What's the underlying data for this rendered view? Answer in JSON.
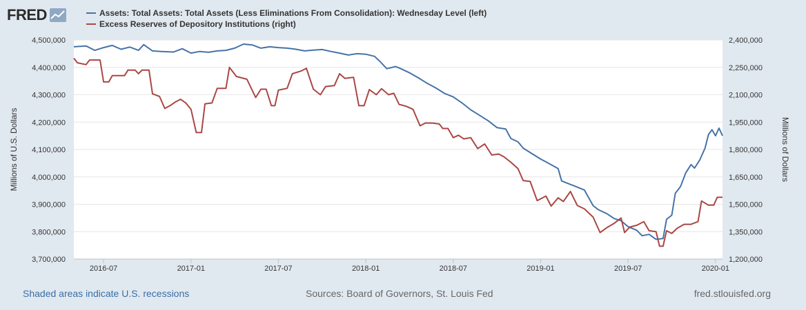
{
  "header": {
    "logo_text": "FRED",
    "logo_icon": "chart-line-icon"
  },
  "legend": [
    {
      "label": "Assets: Total Assets: Total Assets (Less Eliminations From Consolidation): Wednesday Level (left)",
      "color": "#4572a7"
    },
    {
      "label": "Excess Reserves of Depository Institutions (right)",
      "color": "#aa4643"
    }
  ],
  "footer": {
    "recessions": "Shaded areas indicate U.S. recessions",
    "sources": "Sources: Board of Governors, St. Louis Fed",
    "site": "fred.stlouisfed.org"
  },
  "chart_data": {
    "type": "line",
    "title": "",
    "xlabel": "",
    "x_ticks": [
      "2016-07",
      "2017-01",
      "2017-07",
      "2018-01",
      "2018-07",
      "2019-01",
      "2019-07",
      "2020-01"
    ],
    "x_tick_values": [
      2016.5,
      2017.0,
      2017.5,
      2018.0,
      2018.5,
      2019.0,
      2019.5,
      2020.0
    ],
    "xlim": [
      2016.33,
      2020.04
    ],
    "left_axis": {
      "label": "Millions of U.S. Dollars",
      "ylim": [
        3700000,
        4500000
      ],
      "ticks": [
        3700000,
        3800000,
        3900000,
        4000000,
        4100000,
        4200000,
        4300000,
        4400000,
        4500000
      ],
      "tick_labels": [
        "3,700,000",
        "3,800,000",
        "3,900,000",
        "4,000,000",
        "4,100,000",
        "4,200,000",
        "4,300,000",
        "4,400,000",
        "4,500,000"
      ]
    },
    "right_axis": {
      "label": "Millions of Dollars",
      "ylim": [
        1200000,
        2400000
      ],
      "ticks": [
        1200000,
        1350000,
        1500000,
        1650000,
        1800000,
        1950000,
        2100000,
        2250000,
        2400000
      ],
      "tick_labels": [
        "1,200,000",
        "1,350,000",
        "1,500,000",
        "1,650,000",
        "1,800,000",
        "1,950,000",
        "2,100,000",
        "2,250,000",
        "2,400,000"
      ]
    },
    "series": [
      {
        "name": "Assets: Total Assets: Total Assets (Less Eliminations From Consolidation): Wednesday Level (left)",
        "axis": "left",
        "color": "#4572a7",
        "points": [
          [
            2016.33,
            4475000
          ],
          [
            2016.4,
            4478000
          ],
          [
            2016.45,
            4462000
          ],
          [
            2016.5,
            4472000
          ],
          [
            2016.55,
            4480000
          ],
          [
            2016.6,
            4466000
          ],
          [
            2016.65,
            4474000
          ],
          [
            2016.7,
            4462000
          ],
          [
            2016.73,
            4483000
          ],
          [
            2016.78,
            4460000
          ],
          [
            2016.83,
            4458000
          ],
          [
            2016.9,
            4456000
          ],
          [
            2016.95,
            4468000
          ],
          [
            2017.0,
            4452000
          ],
          [
            2017.05,
            4458000
          ],
          [
            2017.1,
            4455000
          ],
          [
            2017.15,
            4460000
          ],
          [
            2017.2,
            4462000
          ],
          [
            2017.25,
            4470000
          ],
          [
            2017.3,
            4485000
          ],
          [
            2017.35,
            4482000
          ],
          [
            2017.4,
            4470000
          ],
          [
            2017.45,
            4475000
          ],
          [
            2017.5,
            4472000
          ],
          [
            2017.55,
            4470000
          ],
          [
            2017.6,
            4466000
          ],
          [
            2017.65,
            4460000
          ],
          [
            2017.7,
            4463000
          ],
          [
            2017.75,
            4465000
          ],
          [
            2017.8,
            4458000
          ],
          [
            2017.85,
            4452000
          ],
          [
            2017.9,
            4445000
          ],
          [
            2017.95,
            4450000
          ],
          [
            2018.0,
            4448000
          ],
          [
            2018.05,
            4440000
          ],
          [
            2018.08,
            4422000
          ],
          [
            2018.12,
            4395000
          ],
          [
            2018.17,
            4403000
          ],
          [
            2018.2,
            4395000
          ],
          [
            2018.25,
            4380000
          ],
          [
            2018.3,
            4362000
          ],
          [
            2018.35,
            4342000
          ],
          [
            2018.4,
            4325000
          ],
          [
            2018.45,
            4305000
          ],
          [
            2018.5,
            4292000
          ],
          [
            2018.55,
            4270000
          ],
          [
            2018.6,
            4245000
          ],
          [
            2018.65,
            4225000
          ],
          [
            2018.7,
            4205000
          ],
          [
            2018.75,
            4180000
          ],
          [
            2018.8,
            4175000
          ],
          [
            2018.83,
            4140000
          ],
          [
            2018.87,
            4128000
          ],
          [
            2018.9,
            4105000
          ],
          [
            2018.95,
            4085000
          ],
          [
            2019.0,
            4065000
          ],
          [
            2019.05,
            4048000
          ],
          [
            2019.1,
            4030000
          ],
          [
            2019.12,
            3985000
          ],
          [
            2019.16,
            3975000
          ],
          [
            2019.2,
            3965000
          ],
          [
            2019.25,
            3952000
          ],
          [
            2019.3,
            3895000
          ],
          [
            2019.33,
            3880000
          ],
          [
            2019.38,
            3865000
          ],
          [
            2019.42,
            3848000
          ],
          [
            2019.46,
            3840000
          ],
          [
            2019.5,
            3818000
          ],
          [
            2019.55,
            3805000
          ],
          [
            2019.58,
            3785000
          ],
          [
            2019.62,
            3790000
          ],
          [
            2019.66,
            3772000
          ],
          [
            2019.7,
            3775000
          ],
          [
            2019.72,
            3845000
          ],
          [
            2019.75,
            3860000
          ],
          [
            2019.77,
            3940000
          ],
          [
            2019.8,
            3965000
          ],
          [
            2019.83,
            4015000
          ],
          [
            2019.86,
            4045000
          ],
          [
            2019.88,
            4032000
          ],
          [
            2019.91,
            4062000
          ],
          [
            2019.94,
            4105000
          ],
          [
            2019.96,
            4155000
          ],
          [
            2019.98,
            4172000
          ],
          [
            2020.0,
            4150000
          ],
          [
            2020.02,
            4178000
          ],
          [
            2020.04,
            4150000
          ]
        ]
      },
      {
        "name": "Excess Reserves of Depository Institutions (right)",
        "axis": "right",
        "color": "#aa4643",
        "points": [
          [
            2016.33,
            2300000
          ],
          [
            2016.35,
            2275000
          ],
          [
            2016.4,
            2265000
          ],
          [
            2016.42,
            2290000
          ],
          [
            2016.48,
            2290000
          ],
          [
            2016.5,
            2170000
          ],
          [
            2016.53,
            2170000
          ],
          [
            2016.55,
            2205000
          ],
          [
            2016.62,
            2205000
          ],
          [
            2016.64,
            2235000
          ],
          [
            2016.68,
            2235000
          ],
          [
            2016.7,
            2215000
          ],
          [
            2016.72,
            2235000
          ],
          [
            2016.76,
            2235000
          ],
          [
            2016.78,
            2105000
          ],
          [
            2016.82,
            2090000
          ],
          [
            2016.85,
            2025000
          ],
          [
            2016.88,
            2040000
          ],
          [
            2016.91,
            2060000
          ],
          [
            2016.94,
            2075000
          ],
          [
            2016.97,
            2055000
          ],
          [
            2017.0,
            2020000
          ],
          [
            2017.03,
            1893000
          ],
          [
            2017.06,
            1893000
          ],
          [
            2017.08,
            2050000
          ],
          [
            2017.12,
            2055000
          ],
          [
            2017.15,
            2135000
          ],
          [
            2017.2,
            2135000
          ],
          [
            2017.22,
            2250000
          ],
          [
            2017.26,
            2200000
          ],
          [
            2017.32,
            2185000
          ],
          [
            2017.37,
            2085000
          ],
          [
            2017.4,
            2130000
          ],
          [
            2017.43,
            2130000
          ],
          [
            2017.46,
            2040000
          ],
          [
            2017.48,
            2040000
          ],
          [
            2017.5,
            2125000
          ],
          [
            2017.55,
            2135000
          ],
          [
            2017.58,
            2215000
          ],
          [
            2017.63,
            2230000
          ],
          [
            2017.66,
            2245000
          ],
          [
            2017.7,
            2130000
          ],
          [
            2017.74,
            2100000
          ],
          [
            2017.77,
            2145000
          ],
          [
            2017.82,
            2150000
          ],
          [
            2017.85,
            2215000
          ],
          [
            2017.88,
            2190000
          ],
          [
            2017.93,
            2195000
          ],
          [
            2017.96,
            2040000
          ],
          [
            2017.99,
            2040000
          ],
          [
            2018.02,
            2128000
          ],
          [
            2018.06,
            2100000
          ],
          [
            2018.09,
            2133000
          ],
          [
            2018.13,
            2100000
          ],
          [
            2018.16,
            2108000
          ],
          [
            2018.19,
            2047000
          ],
          [
            2018.23,
            2037000
          ],
          [
            2018.27,
            2020000
          ],
          [
            2018.31,
            1930000
          ],
          [
            2018.34,
            1945000
          ],
          [
            2018.38,
            1945000
          ],
          [
            2018.42,
            1940000
          ],
          [
            2018.44,
            1915000
          ],
          [
            2018.47,
            1915000
          ],
          [
            2018.5,
            1865000
          ],
          [
            2018.53,
            1878000
          ],
          [
            2018.56,
            1858000
          ],
          [
            2018.6,
            1865000
          ],
          [
            2018.64,
            1805000
          ],
          [
            2018.68,
            1830000
          ],
          [
            2018.72,
            1770000
          ],
          [
            2018.76,
            1775000
          ],
          [
            2018.79,
            1760000
          ],
          [
            2018.83,
            1730000
          ],
          [
            2018.87,
            1695000
          ],
          [
            2018.9,
            1630000
          ],
          [
            2018.94,
            1625000
          ],
          [
            2018.98,
            1520000
          ],
          [
            2019.03,
            1545000
          ],
          [
            2019.06,
            1490000
          ],
          [
            2019.1,
            1535000
          ],
          [
            2019.13,
            1515000
          ],
          [
            2019.17,
            1570000
          ],
          [
            2019.21,
            1493000
          ],
          [
            2019.25,
            1475000
          ],
          [
            2019.3,
            1430000
          ],
          [
            2019.34,
            1345000
          ],
          [
            2019.38,
            1373000
          ],
          [
            2019.42,
            1395000
          ],
          [
            2019.46,
            1425000
          ],
          [
            2019.48,
            1345000
          ],
          [
            2019.51,
            1375000
          ],
          [
            2019.55,
            1385000
          ],
          [
            2019.59,
            1405000
          ],
          [
            2019.62,
            1355000
          ],
          [
            2019.66,
            1350000
          ],
          [
            2019.68,
            1270000
          ],
          [
            2019.7,
            1270000
          ],
          [
            2019.72,
            1355000
          ],
          [
            2019.75,
            1340000
          ],
          [
            2019.78,
            1368000
          ],
          [
            2019.82,
            1390000
          ],
          [
            2019.86,
            1390000
          ],
          [
            2019.9,
            1405000
          ],
          [
            2019.92,
            1518000
          ],
          [
            2019.96,
            1495000
          ],
          [
            2019.99,
            1495000
          ],
          [
            2020.01,
            1538000
          ],
          [
            2020.04,
            1538000
          ]
        ]
      }
    ]
  }
}
